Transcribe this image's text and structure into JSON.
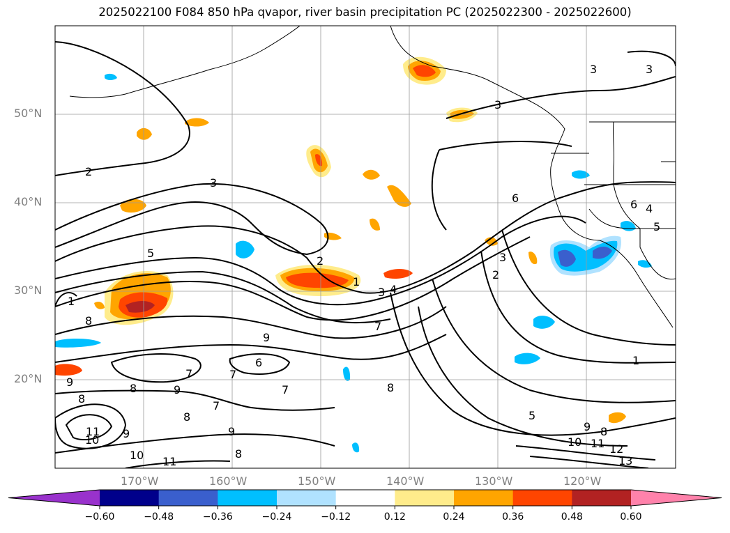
{
  "title": "2025022100 F084 850 hPa qvapor, river basin precipitation PC (2025022300 - 2025022600)",
  "map": {
    "projection": "plate-carree",
    "lon_range": [
      -180,
      -110
    ],
    "lat_range": [
      10,
      60
    ],
    "gridlines": true,
    "lat_labels": [
      "50°N",
      "40°N",
      "30°N",
      "20°N"
    ],
    "lon_labels": [
      "170°W",
      "160°W",
      "150°W",
      "140°W",
      "130°W",
      "120°W"
    ]
  },
  "contour_labels": [
    "3",
    "3",
    "3",
    "2",
    "3",
    "6",
    "4",
    "5",
    "5",
    "6",
    "2",
    "1",
    "3",
    "4",
    "3",
    "2",
    "7",
    "8",
    "9",
    "1",
    "7",
    "7",
    "7",
    "6",
    "9",
    "8",
    "8",
    "9",
    "7",
    "8",
    "9",
    "8",
    "11",
    "10",
    "9",
    "10",
    "11",
    "8",
    "9",
    "5",
    "8",
    "10",
    "11",
    "12",
    "13",
    "1"
  ],
  "colorbar": {
    "ticks": [
      "−0.60",
      "−0.48",
      "−0.36",
      "−0.24",
      "−0.12",
      "0.12",
      "0.24",
      "0.36",
      "0.48",
      "0.60"
    ],
    "colors": [
      "#9932cc",
      "#00008b",
      "#3a5fcd",
      "#00bfff",
      "#b0e2ff",
      "#ffffff",
      "#ffec8b",
      "#ffa500",
      "#ff4500",
      "#b22222",
      "#ff82ab"
    ],
    "extend": "both"
  }
}
